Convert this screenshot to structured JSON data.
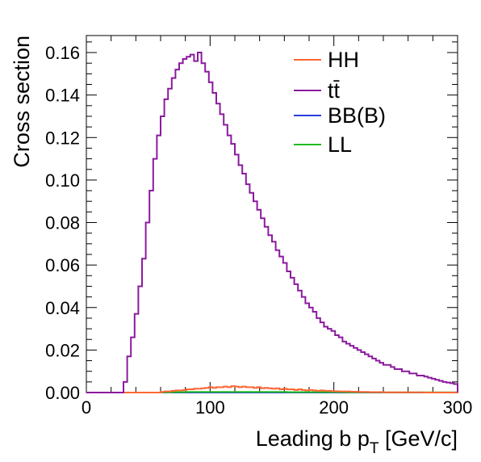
{
  "chart_data": {
    "type": "line",
    "style": "step-histogram",
    "title": "",
    "xlabel": "Leading b p",
    "xlabel_sub": "T",
    "xlabel_unit": " [GeV/c]",
    "ylabel": "Cross section",
    "xlim": [
      0,
      300
    ],
    "ylim": [
      0,
      0.168
    ],
    "grid": false,
    "legend_position": "top-right",
    "x_ticks": [
      "0",
      "100",
      "200",
      "300"
    ],
    "y_ticks": [
      "0.00",
      "0.02",
      "0.04",
      "0.06",
      "0.08",
      "0.10",
      "0.12",
      "0.14",
      "0.16"
    ],
    "bin_width": 3,
    "series": [
      {
        "name": "HH",
        "color": "#ff6633",
        "values": [
          0,
          0,
          0,
          0,
          0,
          0,
          0,
          0,
          0,
          0,
          0,
          0,
          0,
          0,
          0,
          0,
          0,
          0,
          0,
          0,
          0.0003,
          0.0005,
          0.0005,
          0.0008,
          0.001,
          0.001,
          0.0012,
          0.0015,
          0.0015,
          0.0018,
          0.0018,
          0.002,
          0.0022,
          0.0025,
          0.0022,
          0.0025,
          0.0025,
          0.0028,
          0.0025,
          0.003,
          0.0028,
          0.0025,
          0.0028,
          0.0025,
          0.0025,
          0.0022,
          0.0025,
          0.002,
          0.0022,
          0.002,
          0.0018,
          0.002,
          0.0015,
          0.0018,
          0.0015,
          0.0015,
          0.0012,
          0.0015,
          0.0012,
          0.001,
          0.0012,
          0.001,
          0.0008,
          0.001,
          0.0008,
          0.0008,
          0.0006,
          0.0006,
          0.0005,
          0.0005,
          0.0005,
          0.0004,
          0.0004,
          0.0003,
          0.0003,
          0.0003,
          0.0002,
          0.0002,
          0.0002,
          0.0002,
          0.0001,
          0.0001,
          0.0001,
          0.0001,
          0.0001,
          0.0001,
          0.0001,
          0.0001,
          0.0001,
          0.0001,
          0.0001,
          0,
          0,
          0,
          0,
          0,
          0,
          0,
          0,
          0
        ]
      },
      {
        "name": "tt̄",
        "color": "#8b1a9e",
        "values": [
          0,
          0,
          0,
          0,
          0,
          0,
          0,
          0,
          0,
          0,
          0.005,
          0.017,
          0.026,
          0.037,
          0.05,
          0.063,
          0.08,
          0.095,
          0.11,
          0.121,
          0.13,
          0.138,
          0.143,
          0.148,
          0.152,
          0.155,
          0.157,
          0.158,
          0.159,
          0.156,
          0.16,
          0.155,
          0.151,
          0.146,
          0.141,
          0.136,
          0.131,
          0.126,
          0.121,
          0.117,
          0.112,
          0.107,
          0.103,
          0.098,
          0.094,
          0.09,
          0.086,
          0.082,
          0.078,
          0.074,
          0.071,
          0.067,
          0.064,
          0.061,
          0.057,
          0.054,
          0.051,
          0.048,
          0.045,
          0.042,
          0.04,
          0.038,
          0.035,
          0.033,
          0.031,
          0.03,
          0.029,
          0.027,
          0.026,
          0.024,
          0.023,
          0.022,
          0.021,
          0.02,
          0.019,
          0.018,
          0.017,
          0.016,
          0.015,
          0.014,
          0.013,
          0.013,
          0.012,
          0.011,
          0.011,
          0.01,
          0.01,
          0.009,
          0.009,
          0.008,
          0.008,
          0.0075,
          0.007,
          0.0065,
          0.006,
          0.0055,
          0.005,
          0.0047,
          0.0044,
          0.004
        ]
      },
      {
        "name": "BB(B)",
        "color": "#2a3ddb",
        "values": [
          0,
          0,
          0,
          0,
          0,
          0,
          0,
          0,
          0,
          0,
          0,
          0,
          0,
          0,
          0,
          0,
          0,
          0,
          0,
          0,
          0,
          0,
          0,
          0,
          0,
          0,
          0,
          0,
          0,
          0,
          0,
          0,
          0,
          0,
          0,
          0,
          0,
          0,
          0,
          0,
          0,
          0,
          0,
          0,
          0,
          0,
          0,
          0,
          0,
          0,
          0,
          0,
          0,
          0,
          0,
          0,
          0,
          0,
          0,
          0,
          0,
          0,
          0,
          0,
          0,
          0,
          0,
          0,
          0,
          0,
          0,
          0,
          0,
          0,
          0,
          0,
          0,
          0,
          0,
          0,
          0,
          0,
          0,
          0,
          0,
          0,
          0,
          0,
          0,
          0,
          0,
          0,
          0,
          0,
          0,
          0,
          0,
          0,
          0,
          0
        ]
      },
      {
        "name": "LL",
        "color": "#22bb22",
        "values": [
          0,
          0,
          0,
          0,
          0,
          0,
          0,
          0,
          0,
          0,
          0,
          0,
          0,
          0,
          0,
          0,
          0,
          0,
          0,
          0,
          0.0001,
          0.0001,
          0.0001,
          0.0002,
          0.0002,
          0.0002,
          0.0002,
          0.0003,
          0.0003,
          0.0003,
          0.0003,
          0.0003,
          0.0003,
          0.0003,
          0.0003,
          0.0003,
          0.0003,
          0.0003,
          0.0003,
          0.0003,
          0.0003,
          0.0003,
          0.0003,
          0.0003,
          0.0003,
          0.0003,
          0.0003,
          0.0003,
          0.0003,
          0.0003,
          0.0003,
          0.0003,
          0.0003,
          0.0003,
          0.0002,
          0.0002,
          0.0002,
          0.0002,
          0.0002,
          0.0002,
          0.0002,
          0.0002,
          0.0002,
          0.0002,
          0.0002,
          0.0002,
          0.0002,
          0.0002,
          0.0002,
          0.0002,
          0.0001,
          0.0001,
          0.0001,
          0.0001,
          0.0001,
          0.0001,
          0.0001,
          0.0001,
          0.0001,
          0.0001,
          0.0001,
          0.0001,
          0.0001,
          0.0001,
          0.0001,
          0.0001,
          0.0001,
          0.0001,
          0.0001,
          0.0001,
          0.0001,
          0.0001,
          0.0001,
          0.0001,
          0.0001,
          0.0001,
          0.0001,
          0.0001,
          0.0001,
          0.0001
        ]
      }
    ]
  }
}
